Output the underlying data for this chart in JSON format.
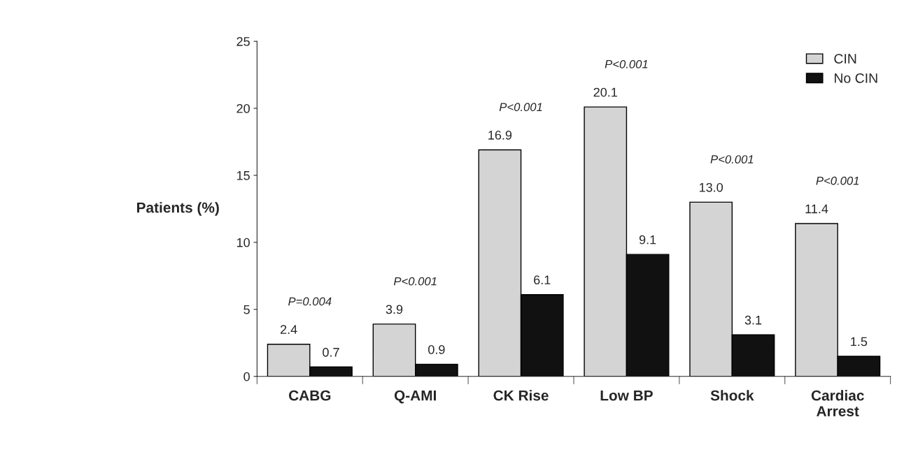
{
  "chart_data": {
    "type": "bar",
    "ylabel": "Patients (%)",
    "categories": [
      "CABG",
      "Q-AMI",
      "CK Rise",
      "Low BP",
      "Shock",
      "Cardiac\nArrest"
    ],
    "series": [
      {
        "name": "CIN",
        "color": "#d4d4d4",
        "values": [
          2.4,
          3.9,
          16.9,
          20.1,
          13.0,
          11.4
        ],
        "value_labels": [
          "2.4",
          "3.9",
          "16.9",
          "20.1",
          "13.0",
          "11.4"
        ]
      },
      {
        "name": "No CIN",
        "color": "#111111",
        "values": [
          0.7,
          0.9,
          6.1,
          9.1,
          3.1,
          1.5
        ],
        "value_labels": [
          "0.7",
          "0.9",
          "6.1",
          "9.1",
          "3.1",
          "1.5"
        ]
      }
    ],
    "ylim": [
      0,
      25
    ],
    "yticks": [
      0,
      5,
      10,
      15,
      20,
      25
    ],
    "annotations": [
      "P=0.004",
      "P<0.001",
      "P<0.001",
      "P<0.001",
      "P<0.001",
      "P<0.001"
    ],
    "grid": false,
    "legend": "top right"
  }
}
